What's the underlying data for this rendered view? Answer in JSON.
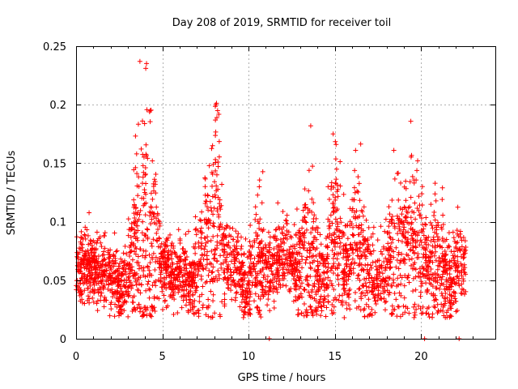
{
  "chart_data": {
    "type": "scatter",
    "title": "Day 208 of 2019, SRMTID for receiver toil",
    "xlabel": "GPS time / hours",
    "ylabel": "SRMTID / TECUs",
    "xlim": [
      0,
      24.3
    ],
    "ylim": [
      0,
      0.25
    ],
    "x_ticks": [
      0,
      5,
      10,
      15,
      20
    ],
    "x_tick_labels": [
      "0",
      "5",
      "10",
      "15",
      "20"
    ],
    "y_ticks": [
      0,
      0.05,
      0.1,
      0.15,
      0.2,
      0.25
    ],
    "y_tick_labels": [
      "0",
      "0.05",
      "0.1",
      "0.15",
      "0.2",
      "0.25"
    ],
    "grid": true,
    "marker": "plus",
    "series": [
      {
        "name": "SRMTID",
        "color": "#ff0000",
        "point_count": 3200,
        "x_range": [
          0,
          22.6
        ],
        "typical_range": [
          0.025,
          0.105
        ],
        "median_value": 0.06,
        "notable_points": [
          {
            "x": 3.7,
            "y": 0.237
          },
          {
            "x": 4.3,
            "y": 0.195
          },
          {
            "x": 8.1,
            "y": 0.2
          },
          {
            "x": 13.6,
            "y": 0.182
          },
          {
            "x": 14.9,
            "y": 0.175
          },
          {
            "x": 16.2,
            "y": 0.161
          },
          {
            "x": 11.2,
            "y": 0.0
          },
          {
            "x": 20.2,
            "y": 0.0
          },
          {
            "x": 22.2,
            "y": 0.0
          }
        ]
      }
    ]
  }
}
